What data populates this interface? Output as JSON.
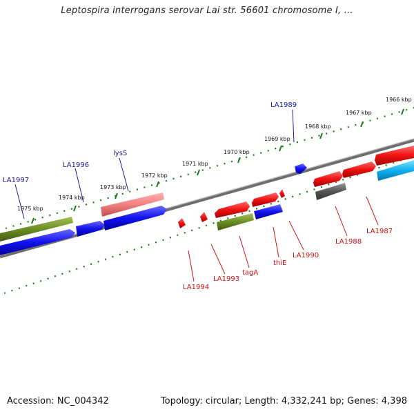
{
  "title": "Leptospira interrogans serovar Lai str. 56601 chromosome I, ...",
  "footer": {
    "accession": "Accession: NC_004342",
    "info": "Topology: circular; Length: 4,332,241 bp; Genes: 4,398"
  },
  "scale_labels": [
    "1966 kbp",
    "1967 kbp",
    "1968 kbp",
    "1969 kbp",
    "1970 kbp",
    "1971 kbp",
    "1972 kbp",
    "1973 kbp",
    "1974 kbp",
    "1975 kbp"
  ],
  "gene_labels": [
    "LA1989",
    "lysS",
    "LA1996",
    "LA1997",
    "LA1994",
    "LA1993",
    "tagA",
    "thiE",
    "LA1990",
    "LA1988",
    "LA1987"
  ],
  "colors": {
    "red": "#ee1111",
    "blue": "#1111ee",
    "green": "#6b8e23",
    "salmon": "#f08080",
    "grey": "#555555",
    "cyan": "#10b0f0",
    "tick": "#1a7a1a",
    "backbone": "#888888",
    "label_blue": "#1a1aa0",
    "label_red": "#cc1111"
  }
}
